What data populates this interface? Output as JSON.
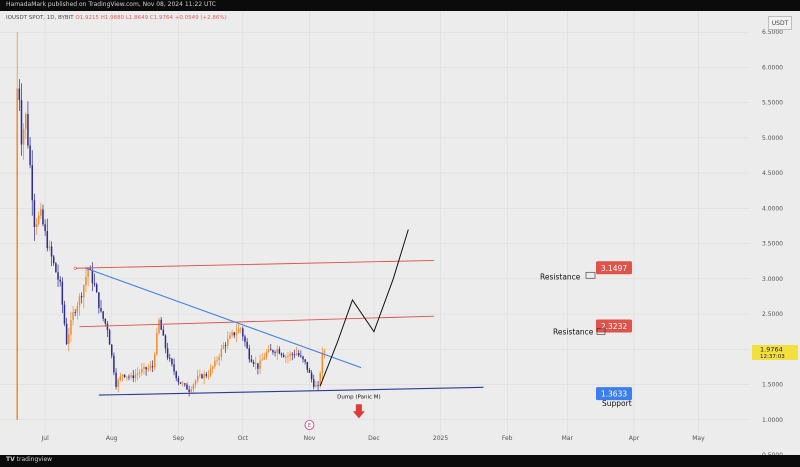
{
  "header": {
    "publisher_line": "HamadaMark published on TradingView.com, Nov 08, 2024 11:22 UTC",
    "symbol_line": "IOUSDT SPOT, 1D, BYBIT",
    "ohlc": {
      "open": "O1.9215",
      "high": "H1.9880",
      "low": "L1.8649",
      "close": "C1.9764",
      "change": "+0.0549 (+2.86%)"
    },
    "currency": "USDT"
  },
  "footer": {
    "brand": "tradingview"
  },
  "colors": {
    "background": "#ececec",
    "up_candle": "#f28a2e",
    "down_candle": "#2d2b8f",
    "resistance_line": "#e0524a",
    "trendline": "#3b7ef0",
    "support_line": "#2a3b9c",
    "projection": "#111111",
    "arrow": "#e03b3b"
  },
  "chart_data": {
    "type": "candlestick",
    "title": "",
    "xlabel": "",
    "ylabel": "",
    "ylim": [
      0.5,
      6.8
    ],
    "yticks": [
      0.5,
      1.0,
      1.5,
      2.0,
      2.5,
      3.0,
      3.5,
      4.0,
      4.5,
      5.0,
      5.5,
      6.0,
      6.5
    ],
    "ytick_labels": [
      "0.5000",
      "1.0000",
      "1.5000",
      "2.0000",
      "2.5000",
      "3.0000",
      "3.5000",
      "4.0000",
      "4.5000",
      "5.0000",
      "5.5000",
      "6.0000",
      "6.5000"
    ],
    "xrange": [
      "2024-06-10",
      "2025-05-25"
    ],
    "xticks": [
      {
        "date": "2024-07-01",
        "label": "Jul"
      },
      {
        "date": "2024-08-01",
        "label": "Aug"
      },
      {
        "date": "2024-09-01",
        "label": "Sep"
      },
      {
        "date": "2024-10-01",
        "label": "Oct"
      },
      {
        "date": "2024-11-01",
        "label": "Nov"
      },
      {
        "date": "2024-12-01",
        "label": "Dec"
      },
      {
        "date": "2025-01-01",
        "label": "2025"
      },
      {
        "date": "2025-02-01",
        "label": "Feb"
      },
      {
        "date": "2025-03-01",
        "label": "Mar"
      },
      {
        "date": "2025-04-01",
        "label": "Apr"
      },
      {
        "date": "2025-05-01",
        "label": "May"
      }
    ],
    "grid": true,
    "close_path": [
      [
        "2024-06-18",
        1.0
      ],
      [
        "2024-06-19",
        5.6
      ],
      [
        "2024-06-20",
        5.0
      ],
      [
        "2024-06-22",
        5.3
      ],
      [
        "2024-06-24",
        4.6
      ],
      [
        "2024-06-26",
        3.8
      ],
      [
        "2024-06-29",
        3.9
      ],
      [
        "2024-07-02",
        3.5
      ],
      [
        "2024-07-05",
        3.2
      ],
      [
        "2024-07-08",
        2.9
      ],
      [
        "2024-07-11",
        2.1
      ],
      [
        "2024-07-14",
        2.5
      ],
      [
        "2024-07-18",
        2.8
      ],
      [
        "2024-07-21",
        3.15
      ],
      [
        "2024-07-24",
        2.9
      ],
      [
        "2024-07-27",
        2.5
      ],
      [
        "2024-07-30",
        2.3
      ],
      [
        "2024-08-03",
        1.5
      ],
      [
        "2024-08-06",
        1.65
      ],
      [
        "2024-08-10",
        1.6
      ],
      [
        "2024-08-15",
        1.7
      ],
      [
        "2024-08-20",
        1.75
      ],
      [
        "2024-08-23",
        2.4
      ],
      [
        "2024-08-27",
        1.9
      ],
      [
        "2024-09-01",
        1.55
      ],
      [
        "2024-09-06",
        1.42
      ],
      [
        "2024-09-10",
        1.6
      ],
      [
        "2024-09-15",
        1.65
      ],
      [
        "2024-09-18",
        1.8
      ],
      [
        "2024-09-22",
        2.05
      ],
      [
        "2024-09-26",
        2.2
      ],
      [
        "2024-09-30",
        2.3
      ],
      [
        "2024-10-04",
        1.9
      ],
      [
        "2024-10-08",
        1.75
      ],
      [
        "2024-10-12",
        1.95
      ],
      [
        "2024-10-17",
        2.0
      ],
      [
        "2024-10-21",
        1.9
      ],
      [
        "2024-10-26",
        1.95
      ],
      [
        "2024-10-30",
        1.8
      ],
      [
        "2024-11-03",
        1.5
      ],
      [
        "2024-11-05",
        1.45
      ],
      [
        "2024-11-07",
        1.92
      ],
      [
        "2024-11-08",
        1.9764
      ]
    ],
    "current_price": {
      "value": 1.9764,
      "label": "1.9764",
      "countdown": "12:37:03"
    },
    "annotations": {
      "resistance_1": {
        "text": "Resistance",
        "value": 3.1497,
        "label": "3.1497"
      },
      "resistance_2": {
        "text": "Resistance",
        "value": 2.3232,
        "label": "2.3232"
      },
      "support": {
        "text": "Support",
        "value": 1.3633,
        "label": "1.3633"
      },
      "dump": {
        "text": "Dump (Panic M)"
      },
      "event_marker": {
        "text": "E"
      }
    },
    "lines": {
      "resistance_1": [
        [
          "2024-07-15",
          3.15
        ],
        [
          "2024-12-29",
          3.26
        ]
      ],
      "resistance_2": [
        [
          "2024-07-17",
          2.32
        ],
        [
          "2024-12-29",
          2.47
        ]
      ],
      "trendline": [
        [
          "2024-07-20",
          3.15
        ],
        [
          "2024-11-25",
          1.74
        ]
      ],
      "support": [
        [
          "2024-07-26",
          1.35
        ],
        [
          "2025-01-21",
          1.46
        ]
      ],
      "projection": [
        [
          "2024-11-06",
          1.48
        ],
        [
          "2024-11-14",
          2.1
        ],
        [
          "2024-11-21",
          2.7
        ],
        [
          "2024-12-01",
          2.25
        ],
        [
          "2024-12-10",
          3.0
        ],
        [
          "2024-12-17",
          3.7
        ]
      ]
    }
  }
}
